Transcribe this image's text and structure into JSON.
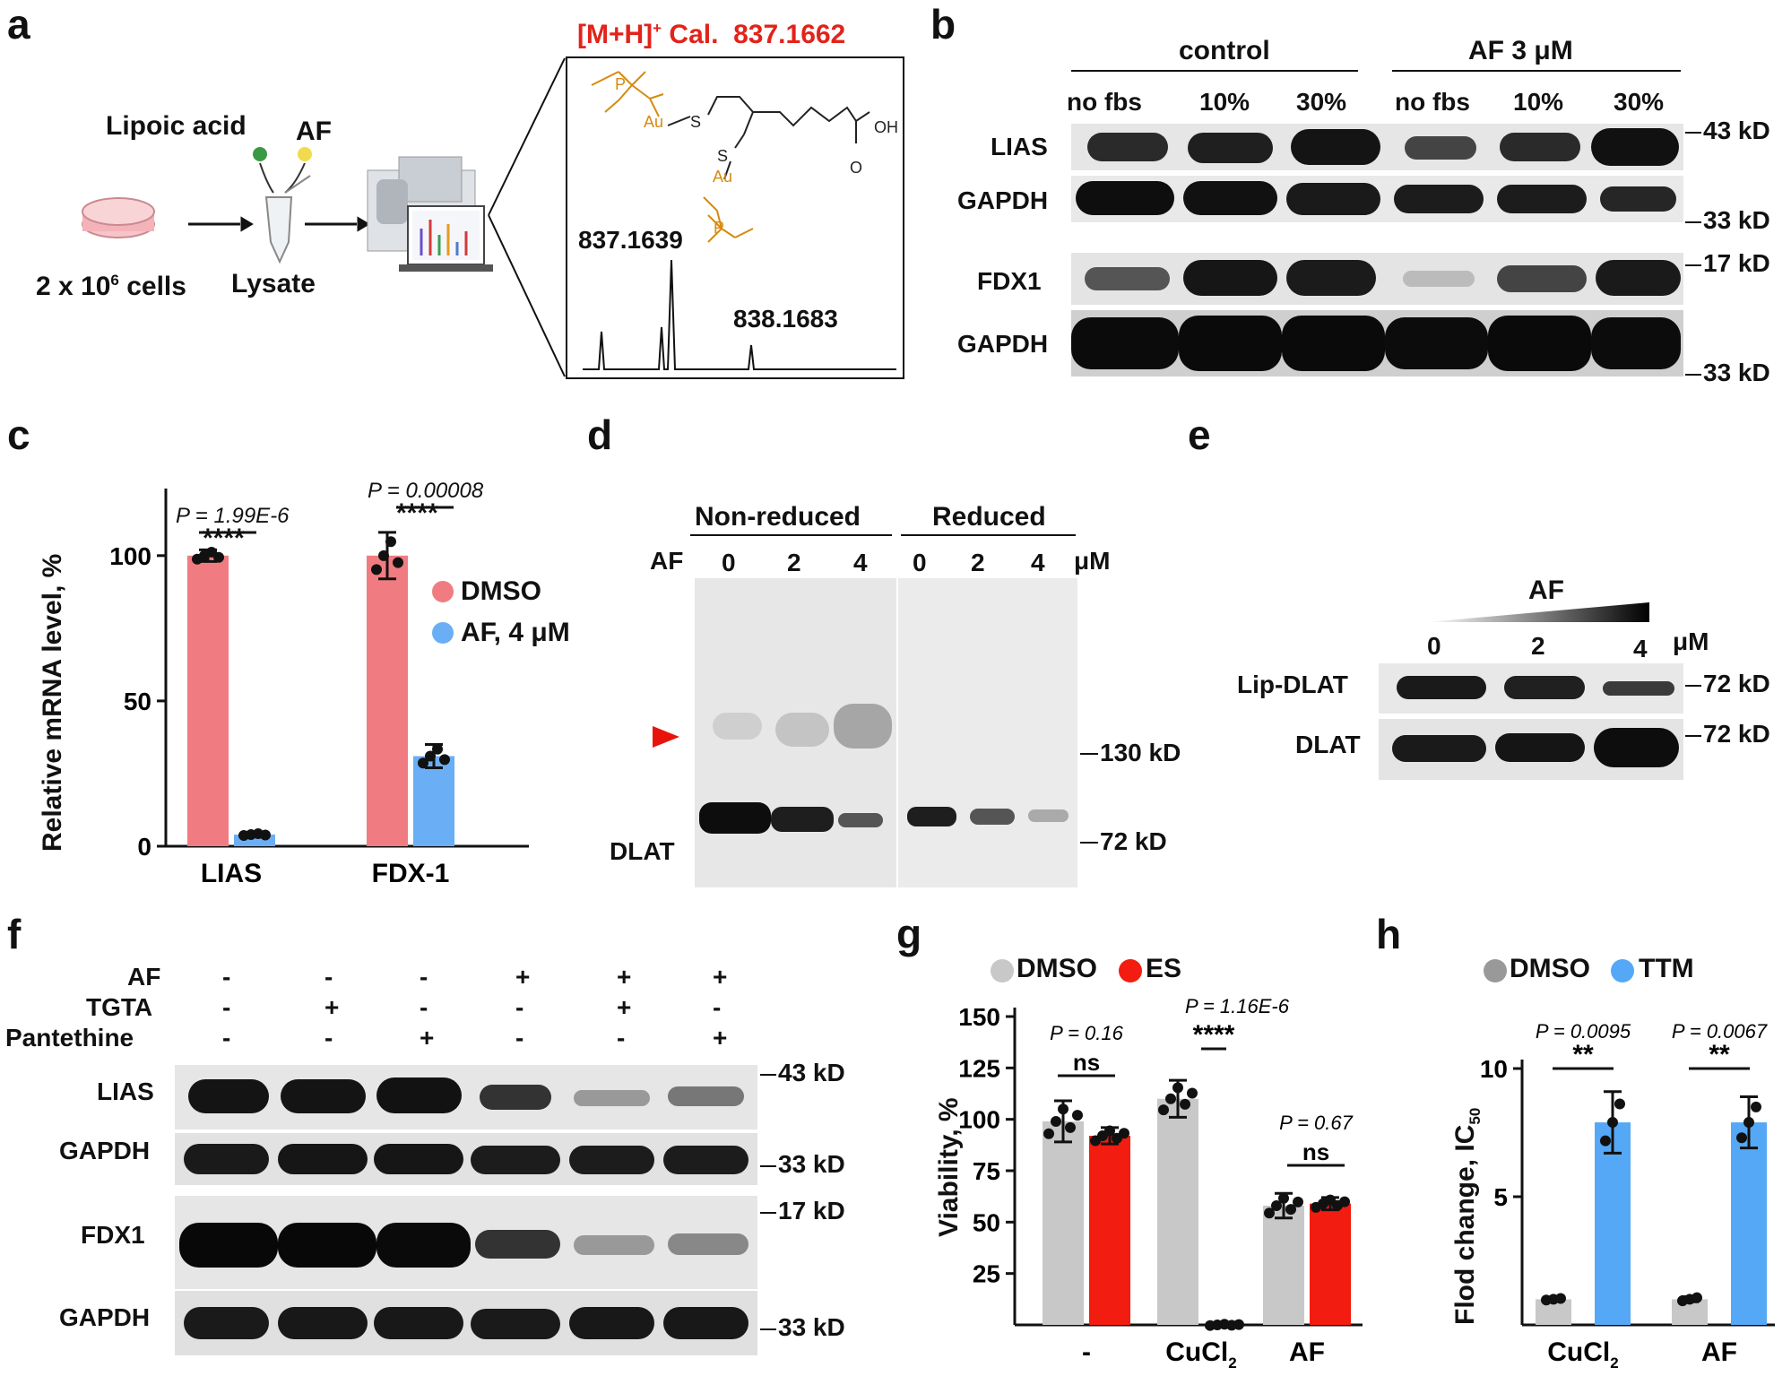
{
  "panels": {
    "a": "a",
    "b": "b",
    "c": "c",
    "d": "d",
    "e": "e",
    "f": "f",
    "g": "g",
    "h": "h"
  },
  "panel_a": {
    "lipoic_acid": "Lipoic acid",
    "af": "AF",
    "cells": "2 x 10",
    "cells_sup": "6",
    "cells_suffix": " cells",
    "lysate": "Lysate",
    "mh": "[M+H]",
    "mh_sup": "+",
    "cal": " Cal.  837.1662",
    "peak1": "837.1639",
    "peak2": "838.1683",
    "struct_labels": {
      "p": "P",
      "au": "Au",
      "s": "S",
      "oh": "OH",
      "o": "O"
    },
    "mass_red": "#e2231a",
    "struct_color": "#d68a10"
  },
  "panel_b": {
    "group1": "control",
    "group2": "AF 3 μM",
    "lanes": [
      "no fbs",
      "10%",
      "30%",
      "no fbs",
      "10%",
      "30%"
    ],
    "rows": [
      "LIAS",
      "GAPDH",
      "FDX1",
      "GAPDH"
    ],
    "markers": [
      "43 kD",
      "33 kD",
      "17 kD",
      "33 kD"
    ]
  },
  "panel_c": {
    "ylabel": "Relative mRNA level, %",
    "p1": "P = 1.99E-6",
    "p2": "P = 0.00008",
    "stars": "****",
    "legend": [
      "DMSO",
      "AF, 4 μM"
    ]
  },
  "panel_d": {
    "non_reduced": "Non-reduced",
    "reduced": "Reduced",
    "af": "AF",
    "lanes": [
      "0",
      "2",
      "4",
      "0",
      "2",
      "4"
    ],
    "unit": "μM",
    "dlat": "DLAT",
    "m130": "130 kD",
    "m72": "72 kD"
  },
  "panel_e": {
    "af": "AF",
    "lanes": [
      "0",
      "2",
      "4"
    ],
    "unit": "μM",
    "rows": [
      "Lip-DLAT",
      "DLAT"
    ],
    "markers": [
      "72 kD",
      "72 kD"
    ]
  },
  "panel_f": {
    "conditions": [
      {
        "name": "AF",
        "values": [
          "-",
          "-",
          "-",
          "+",
          "+",
          "+"
        ]
      },
      {
        "name": "TGTA",
        "values": [
          "-",
          "+",
          "-",
          "-",
          "+",
          "-"
        ]
      },
      {
        "name": "Pantethine",
        "values": [
          "-",
          "-",
          "+",
          "-",
          "-",
          "+"
        ]
      }
    ],
    "rows": [
      "LIAS",
      "GAPDH",
      "FDX1",
      "GAPDH"
    ],
    "markers": [
      "43 kD",
      "33 kD",
      "17 kD",
      "33 kD"
    ]
  },
  "panel_g": {
    "legend": [
      "DMSO",
      "ES"
    ],
    "ylabel": "Viability, %",
    "p": [
      "P = 0.16",
      "P = 1.16E-6",
      "P = 0.67"
    ],
    "sig": [
      "ns",
      "****",
      "ns"
    ],
    "xlabels": [
      "-",
      "CuCl",
      "AF"
    ],
    "sub2": "2"
  },
  "panel_h": {
    "legend": [
      "DMSO",
      "TTM"
    ],
    "ylabel": "Flod change, IC",
    "ylabel_sub": "50",
    "p": [
      "P = 0.0095",
      "P = 0.0067"
    ],
    "sig": [
      "**",
      "**"
    ],
    "xlabels": [
      "CuCl",
      "AF"
    ],
    "sub2": "2"
  },
  "colors": {
    "dmso_c": "#f07c82",
    "af_c": "#6aaef5",
    "dmso_g": "#c8c8c8",
    "es_g": "#f21c10",
    "ttm_h": "#55a8f5",
    "arrow_red": "#e8140c"
  },
  "chart_data": [
    {
      "type": "bar",
      "panel": "c",
      "title": "",
      "ylabel": "Relative mRNA level, %",
      "categories": [
        "LIAS",
        "FDX-1"
      ],
      "series": [
        {
          "name": "DMSO",
          "values": [
            100,
            100
          ],
          "sd": [
            2,
            8
          ]
        },
        {
          "name": "AF, 4 μM",
          "values": [
            4,
            31
          ],
          "sd": [
            0.5,
            4
          ]
        }
      ],
      "ylim": [
        0,
        120
      ],
      "yticks": [
        0,
        50,
        100
      ],
      "pvalues": [
        "P = 1.99E-6",
        "P = 0.00008"
      ]
    },
    {
      "type": "bar",
      "panel": "g",
      "ylabel": "Viability, %",
      "categories": [
        "-",
        "CuCl2",
        "AF"
      ],
      "series": [
        {
          "name": "DMSO",
          "values": [
            99,
            110,
            58
          ],
          "sd": [
            10,
            9,
            6
          ]
        },
        {
          "name": "ES",
          "values": [
            92,
            0,
            59
          ],
          "sd": [
            4,
            0.5,
            3
          ]
        }
      ],
      "ylim": [
        0,
        150
      ],
      "yticks": [
        25,
        50,
        75,
        100,
        125,
        150
      ],
      "pvalues": [
        "P = 0.16",
        "P = 1.16E-6",
        "P = 0.67"
      ]
    },
    {
      "type": "bar",
      "panel": "h",
      "ylabel": "Flod change, IC50",
      "categories": [
        "CuCl2",
        "AF"
      ],
      "series": [
        {
          "name": "DMSO",
          "values": [
            1,
            1
          ],
          "sd": [
            0.05,
            0.1
          ]
        },
        {
          "name": "TTM",
          "values": [
            7.9,
            7.9
          ],
          "sd": [
            1.2,
            1.0
          ]
        }
      ],
      "ylim": [
        0,
        10
      ],
      "yticks": [
        5,
        10
      ],
      "pvalues": [
        "P = 0.0095",
        "P = 0.0067"
      ]
    }
  ]
}
